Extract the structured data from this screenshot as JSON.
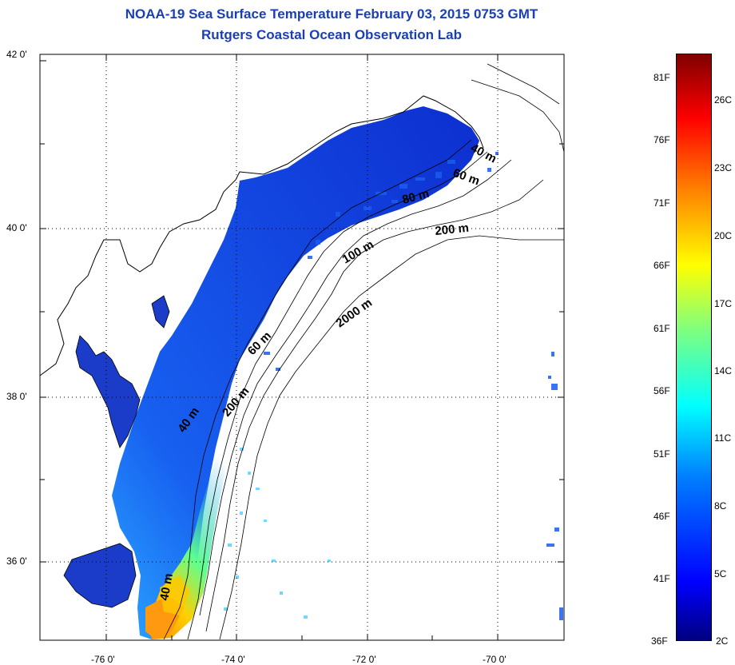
{
  "title": {
    "line1": "NOAA-19 Sea Surface Temperature February 03, 2015 0753 GMT",
    "line2": "Rutgers Coastal Ocean Observation Lab"
  },
  "map": {
    "lat_labels": [
      "42 0'",
      "40 0'",
      "38 0'",
      "36 0'"
    ],
    "lon_labels": [
      "-76 0'",
      "-74 0'",
      "-72 0'",
      "-70 0'"
    ],
    "contour_labels": [
      "40 m",
      "60 m",
      "80 m",
      "200 m",
      "100 m",
      "2000 m",
      "60 m",
      "200 m",
      "40 m",
      "40 m"
    ],
    "colors": {
      "land": "#ffffff",
      "coastline": "#000000",
      "grid": "#000000"
    }
  },
  "colorbar": {
    "f_labels": [
      "81F",
      "76F",
      "71F",
      "66F",
      "61F",
      "56F",
      "51F",
      "46F",
      "41F",
      "36F"
    ],
    "c_labels": [
      "26C",
      "23C",
      "20C",
      "17C",
      "14C",
      "11C",
      "8C",
      "5C",
      "2C"
    ],
    "range_f": [
      36,
      83
    ],
    "colormap": [
      "#00007f",
      "#0000ff",
      "#007fff",
      "#00ffff",
      "#7fff7f",
      "#ffff00",
      "#ff7f00",
      "#ff0000",
      "#7f0000"
    ]
  }
}
